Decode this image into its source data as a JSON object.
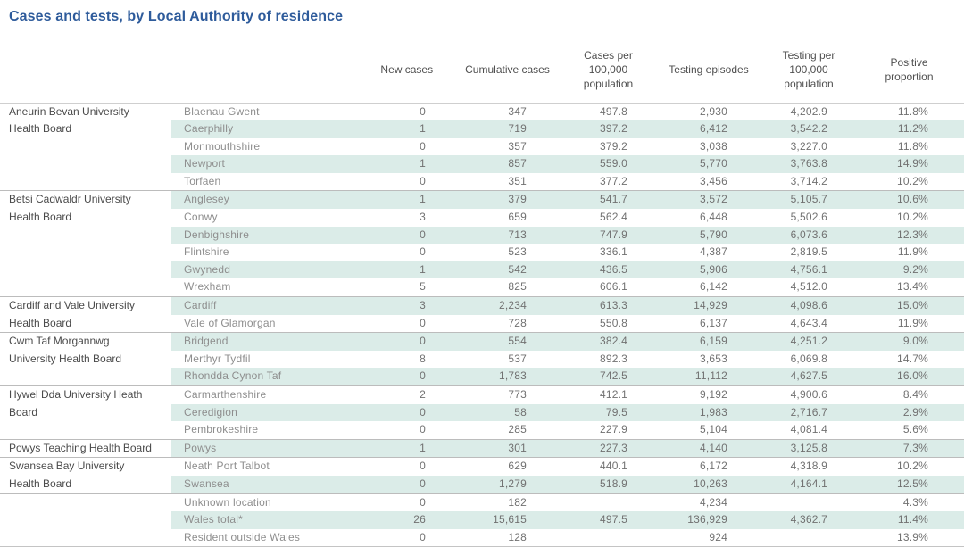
{
  "colors": {
    "title": "#2e5b9b",
    "band": "#dbece8"
  },
  "chart_data": {
    "type": "table",
    "title": "Cases and tests, by Local Authority of residence",
    "columns": [
      "New cases",
      "Cumulative cases",
      "Cases per 100,000 population",
      "Testing episodes",
      "Testing per 100,000 population",
      "Positive proportion"
    ],
    "groups": [
      {
        "board": "Aneurin Bevan University\nHealth Board",
        "rows": [
          {
            "area": "Blaenau Gwent",
            "values": [
              "0",
              "347",
              "497.8",
              "2,930",
              "4,202.9",
              "11.8%"
            ]
          },
          {
            "area": "Caerphilly",
            "values": [
              "1",
              "719",
              "397.2",
              "6,412",
              "3,542.2",
              "11.2%"
            ]
          },
          {
            "area": "Monmouthshire",
            "values": [
              "0",
              "357",
              "379.2",
              "3,038",
              "3,227.0",
              "11.8%"
            ]
          },
          {
            "area": "Newport",
            "values": [
              "1",
              "857",
              "559.0",
              "5,770",
              "3,763.8",
              "14.9%"
            ]
          },
          {
            "area": "Torfaen",
            "values": [
              "0",
              "351",
              "377.2",
              "3,456",
              "3,714.2",
              "10.2%"
            ]
          }
        ]
      },
      {
        "board": "Betsi Cadwaldr University\nHealth Board",
        "rows": [
          {
            "area": "Anglesey",
            "values": [
              "1",
              "379",
              "541.7",
              "3,572",
              "5,105.7",
              "10.6%"
            ]
          },
          {
            "area": "Conwy",
            "values": [
              "3",
              "659",
              "562.4",
              "6,448",
              "5,502.6",
              "10.2%"
            ]
          },
          {
            "area": "Denbighshire",
            "values": [
              "0",
              "713",
              "747.9",
              "5,790",
              "6,073.6",
              "12.3%"
            ]
          },
          {
            "area": "Flintshire",
            "values": [
              "0",
              "523",
              "336.1",
              "4,387",
              "2,819.5",
              "11.9%"
            ]
          },
          {
            "area": "Gwynedd",
            "values": [
              "1",
              "542",
              "436.5",
              "5,906",
              "4,756.1",
              "9.2%"
            ]
          },
          {
            "area": "Wrexham",
            "values": [
              "5",
              "825",
              "606.1",
              "6,142",
              "4,512.0",
              "13.4%"
            ]
          }
        ]
      },
      {
        "board": "Cardiff and Vale University\nHealth Board",
        "rows": [
          {
            "area": "Cardiff",
            "values": [
              "3",
              "2,234",
              "613.3",
              "14,929",
              "4,098.6",
              "15.0%"
            ]
          },
          {
            "area": "Vale of Glamorgan",
            "values": [
              "0",
              "728",
              "550.8",
              "6,137",
              "4,643.4",
              "11.9%"
            ]
          }
        ]
      },
      {
        "board": "Cwm Taf Morgannwg\nUniversity Health Board",
        "rows": [
          {
            "area": "Bridgend",
            "values": [
              "0",
              "554",
              "382.4",
              "6,159",
              "4,251.2",
              "9.0%"
            ]
          },
          {
            "area": "Merthyr Tydfil",
            "values": [
              "8",
              "537",
              "892.3",
              "3,653",
              "6,069.8",
              "14.7%"
            ]
          },
          {
            "area": "Rhondda Cynon Taf",
            "values": [
              "0",
              "1,783",
              "742.5",
              "11,112",
              "4,627.5",
              "16.0%"
            ]
          }
        ]
      },
      {
        "board": "Hywel Dda University Heath\nBoard",
        "rows": [
          {
            "area": "Carmarthenshire",
            "values": [
              "2",
              "773",
              "412.1",
              "9,192",
              "4,900.6",
              "8.4%"
            ]
          },
          {
            "area": "Ceredigion",
            "values": [
              "0",
              "58",
              "79.5",
              "1,983",
              "2,716.7",
              "2.9%"
            ]
          },
          {
            "area": "Pembrokeshire",
            "values": [
              "0",
              "285",
              "227.9",
              "5,104",
              "4,081.4",
              "5.6%"
            ]
          }
        ]
      },
      {
        "board": "Powys Teaching Health Board",
        "rows": [
          {
            "area": "Powys",
            "values": [
              "1",
              "301",
              "227.3",
              "4,140",
              "3,125.8",
              "7.3%"
            ]
          }
        ]
      },
      {
        "board": "Swansea Bay University\nHealth Board",
        "rows": [
          {
            "area": "Neath Port Talbot",
            "values": [
              "0",
              "629",
              "440.1",
              "6,172",
              "4,318.9",
              "10.2%"
            ]
          },
          {
            "area": "Swansea",
            "values": [
              "0",
              "1,279",
              "518.9",
              "10,263",
              "4,164.1",
              "12.5%"
            ]
          }
        ]
      },
      {
        "board": "",
        "rows": [
          {
            "area": "Unknown location",
            "values": [
              "0",
              "182",
              "",
              "4,234",
              "",
              "4.3%"
            ]
          },
          {
            "area": "Wales total*",
            "values": [
              "26",
              "15,615",
              "497.5",
              "136,929",
              "4,362.7",
              "11.4%"
            ]
          },
          {
            "area": "Resident outside Wales",
            "values": [
              "0",
              "128",
              "",
              "924",
              "",
              "13.9%"
            ]
          }
        ]
      }
    ]
  }
}
